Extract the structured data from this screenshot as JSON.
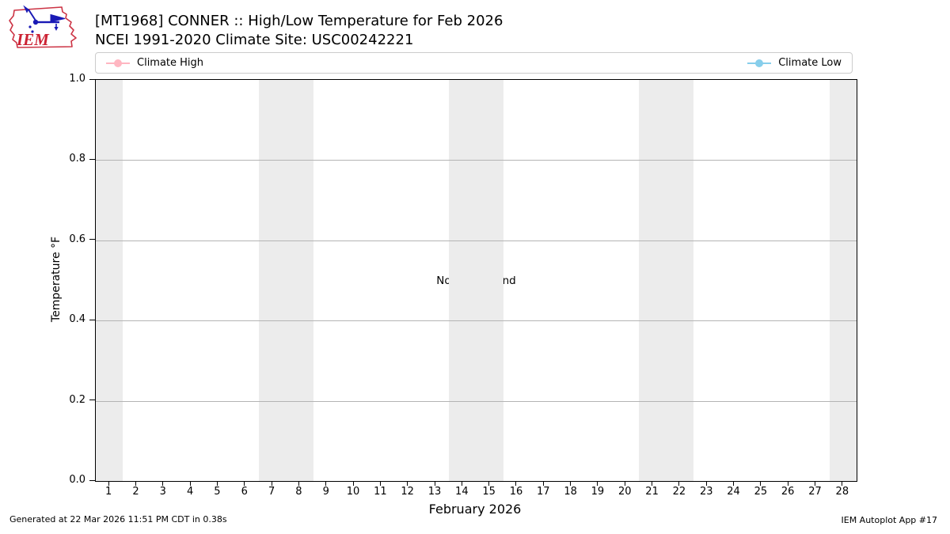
{
  "header": {
    "logo_text": "IEM",
    "title": "[MT1968] CONNER :: High/Low Temperature for Feb 2026",
    "subtitle": "NCEI 1991-2020 Climate Site: USC00242221"
  },
  "chart_data": {
    "type": "line",
    "title": "[MT1968] CONNER :: High/Low Temperature for Feb 2026",
    "subtitle": "NCEI 1991-2020 Climate Site: USC00242221",
    "xlabel": "February 2026",
    "ylabel": "Temperature °F",
    "categories": [
      1,
      2,
      3,
      4,
      5,
      6,
      7,
      8,
      9,
      10,
      11,
      12,
      13,
      14,
      15,
      16,
      17,
      18,
      19,
      20,
      21,
      22,
      23,
      24,
      25,
      26,
      27,
      28
    ],
    "series": [
      {
        "name": "Climate High",
        "color": "#ffb6c1",
        "values": []
      },
      {
        "name": "Climate Low",
        "color": "#87ceeb",
        "values": []
      }
    ],
    "ylim": [
      0.0,
      1.0
    ],
    "ytick_labels": [
      "0.0",
      "0.2",
      "0.4",
      "0.6",
      "0.8",
      "1.0"
    ],
    "grid": "horizontal",
    "legend_position": "top-expanded-two-column",
    "weekend_band_day_ranges": [
      [
        0.5,
        1.5
      ],
      [
        6.5,
        8.5
      ],
      [
        13.5,
        15.5
      ],
      [
        20.5,
        22.5
      ],
      [
        27.5,
        28.5
      ]
    ],
    "band_color": "#ececec",
    "annotation": "No Data Found",
    "no_data": true
  },
  "footer": {
    "left": "Generated at 22 Mar 2026 11:51 PM CDT in 0.38s",
    "right": "IEM Autoplot App #17"
  }
}
